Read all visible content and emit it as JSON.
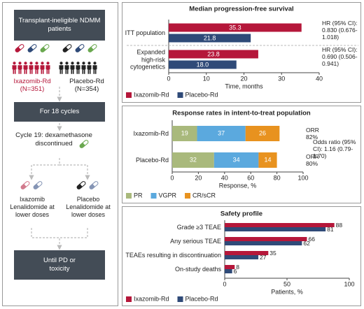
{
  "flow": {
    "start": "Transplant-ineligible NDMM patients",
    "arms": [
      {
        "name": "Ixazomib-Rd",
        "n": "(N=351)"
      },
      {
        "name": "Placebo-Rd",
        "n": "(N=354)"
      }
    ],
    "phase1": "For 18 cycles",
    "cycle19": "Cycle 19: dexamethasone discontinued",
    "maintenance": [
      {
        "drug": "Ixazomib",
        "backbone": "Lenalidomide at lower doses"
      },
      {
        "drug": "Placebo",
        "backbone": "Lenalidomide at lower doses"
      }
    ],
    "end": "Until PD or toxicity"
  },
  "chart_data": [
    {
      "type": "bar",
      "orientation": "horizontal",
      "title": "Median progression-free survival",
      "categories": [
        "ITT population",
        "Expanded high-risk cytogenetics"
      ],
      "series": [
        {
          "name": "Ixazomib-Rd",
          "color": "#b5173a",
          "values": [
            35.3,
            23.8
          ]
        },
        {
          "name": "Placebo-Rd",
          "color": "#2f4a78",
          "values": [
            21.8,
            18.0
          ],
          "value_labels": [
            "21.8",
            "18.0"
          ]
        }
      ],
      "xlim": [
        0,
        40
      ],
      "xticks": [
        0,
        10,
        20,
        30,
        40
      ],
      "xlabel": "Time, months",
      "annotations": [
        "HR (95% CI): 0.830 (0.676-1.018)",
        "HR (95% CI): 0.690 (0.506-0.941)"
      ],
      "legend": "bottom-left"
    },
    {
      "type": "stacked_bar",
      "orientation": "horizontal",
      "title": "Response rates in intent-to-treat population",
      "categories": [
        "Ixazomib-Rd",
        "Placebo-Rd"
      ],
      "series": [
        {
          "name": "PR",
          "color": "#a9b97c",
          "values": [
            19,
            32
          ]
        },
        {
          "name": "VGPR",
          "color": "#5ba9de",
          "values": [
            37,
            34
          ]
        },
        {
          "name": "CR/sCR",
          "color": "#e8921f",
          "values": [
            26,
            14
          ]
        }
      ],
      "xlim": [
        0,
        100
      ],
      "xticks": [
        0,
        20,
        40,
        60,
        80,
        100
      ],
      "xlabel": "Response, %",
      "annotations": [
        "ORR 82%",
        "Odds ratio (95% CI): 1.16 (0.79-1.70)",
        "ORR 80%"
      ],
      "legend": "bottom-left"
    },
    {
      "type": "bar",
      "orientation": "horizontal",
      "title": "Safety profile",
      "categories": [
        "Grade ≥3 TEAE",
        "Any serious TEAE",
        "TEAEs resulting in discontinuation",
        "On-study deaths"
      ],
      "series": [
        {
          "name": "Ixazomib-Rd",
          "color": "#b5173a",
          "values": [
            88,
            66,
            35,
            8
          ]
        },
        {
          "name": "Placebo-Rd",
          "color": "#2f4a78",
          "values": [
            81,
            62,
            27,
            6
          ]
        }
      ],
      "xlim": [
        0,
        100
      ],
      "xticks": [
        0,
        50,
        100
      ],
      "xlabel": "Patients, %",
      "annotations": [],
      "legend": "bottom-left"
    }
  ]
}
